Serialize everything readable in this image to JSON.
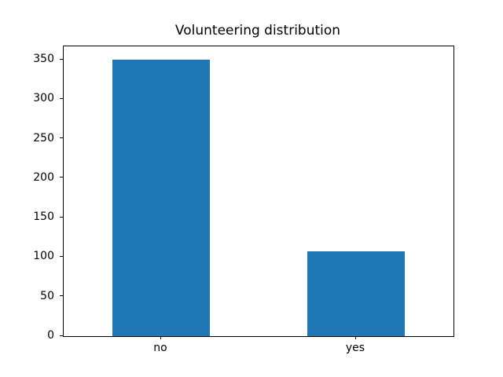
{
  "chart_data": {
    "type": "bar",
    "title": "Volunteering distribution",
    "categories": [
      "no",
      "yes"
    ],
    "values": [
      350,
      107
    ],
    "xlabel": "",
    "ylabel": "",
    "ylim": [
      0,
      367.5
    ],
    "yticks": [
      0,
      50,
      100,
      150,
      200,
      250,
      300,
      350
    ],
    "bar_color": "#1f77b4",
    "bar_width_fraction": 0.5,
    "grid": false,
    "legend": null
  }
}
